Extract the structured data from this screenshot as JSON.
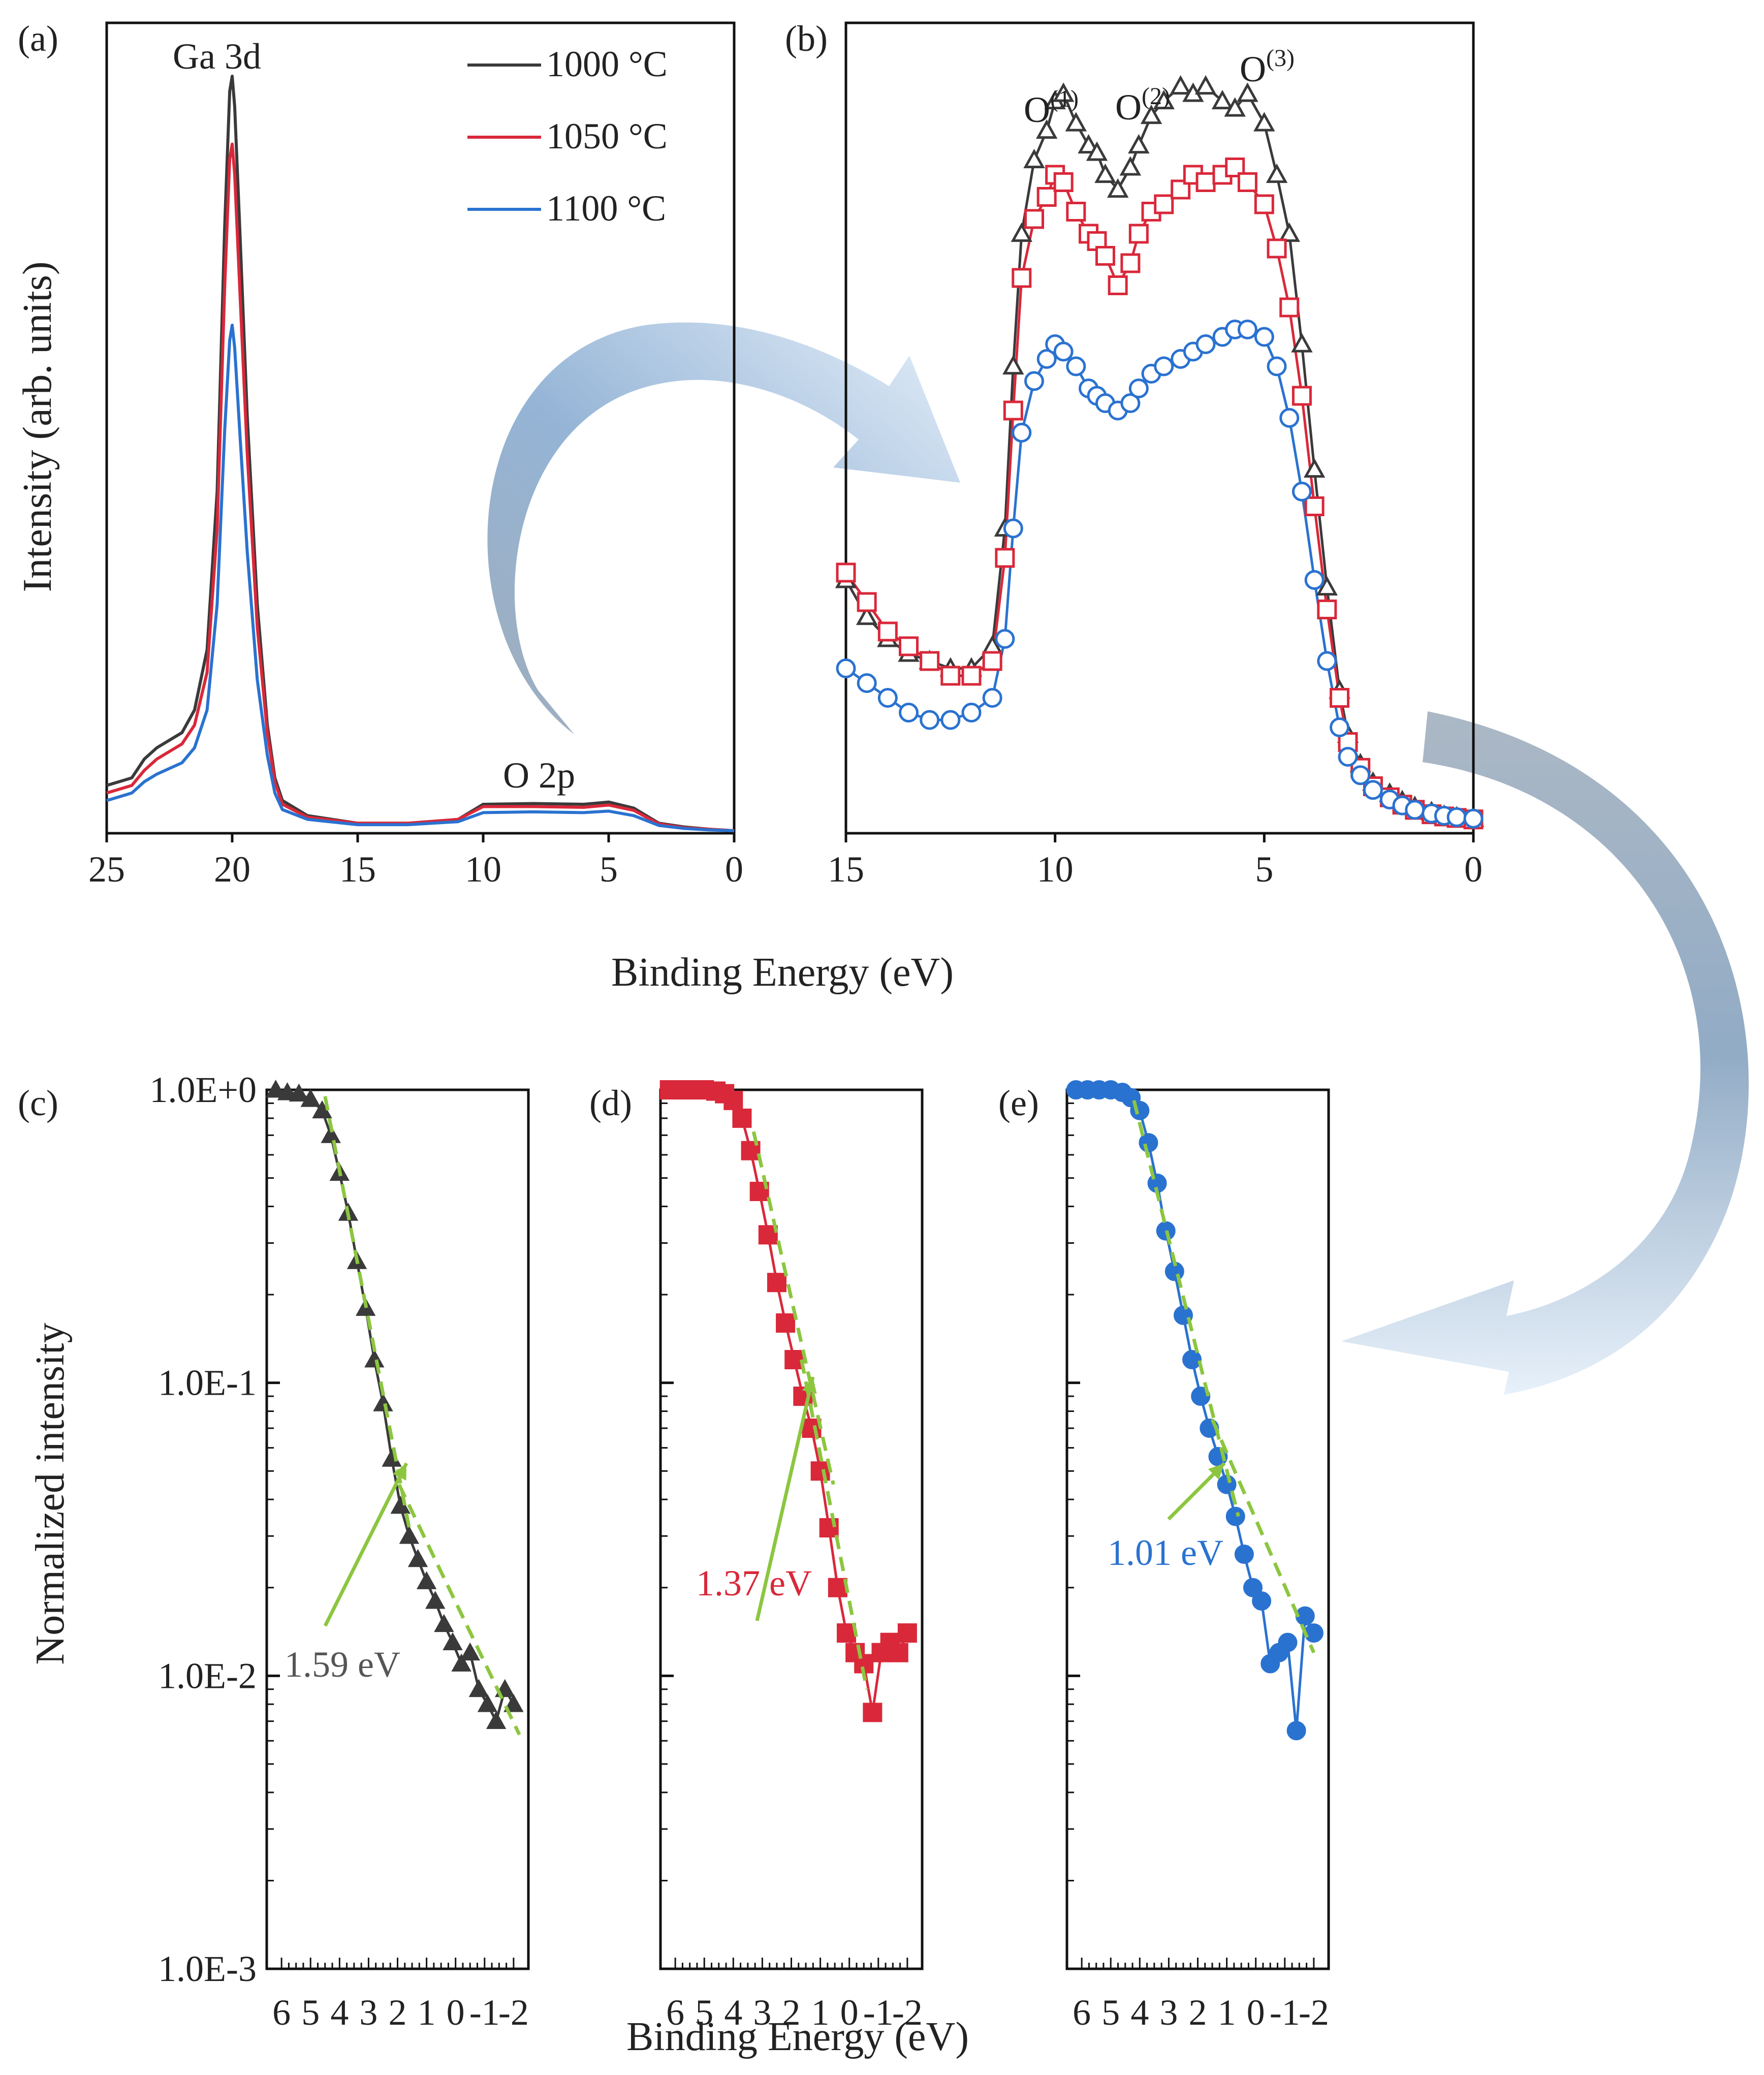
{
  "figure": {
    "shared_xlabel_top": "Binding Energy (eV)",
    "shared_xlabel_bottom": "Binding Energy (eV)"
  },
  "chart_data": [
    {
      "panel": "(a)",
      "type": "line",
      "title": "",
      "xlabel": "",
      "ylabel": "Intensity (arb. units)",
      "xlim": [
        25,
        0
      ],
      "x_ticks": [
        "25",
        "20",
        "15",
        "10",
        "5",
        "0"
      ],
      "annotations": [
        "Ga 3d",
        "O 2p"
      ],
      "legend": {
        "placement": "top-right",
        "entries": [
          "1000 °C",
          "1050 °C",
          "1100 °C"
        ]
      },
      "series": [
        {
          "name": "1000 °C",
          "color": "#3a3a3a",
          "x": [
            25,
            24,
            23.5,
            23,
            22,
            21.5,
            21,
            20.6,
            20.3,
            20.1,
            20,
            19.9,
            19.7,
            19.4,
            19,
            18.6,
            18.3,
            18,
            17,
            15,
            13,
            11,
            10,
            8,
            6,
            5,
            4,
            3,
            2,
            1,
            0
          ],
          "y": [
            0.06,
            0.07,
            0.095,
            0.11,
            0.13,
            0.16,
            0.24,
            0.45,
            0.8,
            0.98,
            1.0,
            0.96,
            0.8,
            0.55,
            0.3,
            0.14,
            0.07,
            0.04,
            0.02,
            0.01,
            0.01,
            0.015,
            0.035,
            0.036,
            0.035,
            0.038,
            0.03,
            0.01,
            0.005,
            0.002,
            0.0
          ]
        },
        {
          "name": "1050 °C",
          "color": "#d9283a",
          "x": [
            25,
            24,
            23.5,
            23,
            22,
            21.5,
            21,
            20.6,
            20.3,
            20.1,
            20,
            19.9,
            19.7,
            19.4,
            19,
            18.6,
            18.3,
            18,
            17,
            15,
            13,
            11,
            10,
            8,
            6,
            5,
            4,
            3,
            2,
            1,
            0
          ],
          "y": [
            0.05,
            0.06,
            0.08,
            0.095,
            0.115,
            0.14,
            0.21,
            0.4,
            0.72,
            0.89,
            0.91,
            0.87,
            0.72,
            0.5,
            0.27,
            0.13,
            0.065,
            0.035,
            0.018,
            0.01,
            0.01,
            0.015,
            0.032,
            0.032,
            0.031,
            0.034,
            0.027,
            0.009,
            0.004,
            0.002,
            0.0
          ]
        },
        {
          "name": "1100 °C",
          "color": "#2a72d0",
          "x": [
            25,
            24,
            23.5,
            23,
            22,
            21.5,
            21,
            20.6,
            20.3,
            20.1,
            20,
            19.9,
            19.7,
            19.4,
            19,
            18.6,
            18.3,
            18,
            17,
            15,
            13,
            11,
            10,
            8,
            6,
            5,
            4,
            3,
            2,
            1,
            0
          ],
          "y": [
            0.04,
            0.05,
            0.065,
            0.075,
            0.09,
            0.11,
            0.16,
            0.3,
            0.53,
            0.65,
            0.67,
            0.64,
            0.53,
            0.37,
            0.2,
            0.1,
            0.05,
            0.028,
            0.015,
            0.008,
            0.008,
            0.012,
            0.024,
            0.025,
            0.024,
            0.026,
            0.02,
            0.007,
            0.003,
            0.001,
            0.0
          ]
        }
      ]
    },
    {
      "panel": "(b)",
      "type": "scatter",
      "title": "",
      "xlabel": "",
      "ylabel": "",
      "xlim": [
        15,
        0
      ],
      "x_ticks": [
        "15",
        "10",
        "5",
        "0"
      ],
      "annotations": [
        "O(1)",
        "O(2)",
        "O(3)"
      ],
      "series": [
        {
          "name": "1000 °C",
          "marker": "triangle-open",
          "color": "#3a3a3a",
          "x": [
            15,
            14.5,
            14,
            13.5,
            13,
            12.5,
            12,
            11.5,
            11.2,
            11,
            10.8,
            10.5,
            10.2,
            10,
            9.8,
            9.5,
            9.2,
            9,
            8.8,
            8.5,
            8.2,
            8,
            7.7,
            7.4,
            7,
            6.7,
            6.4,
            6,
            5.7,
            5.4,
            5,
            4.7,
            4.4,
            4.1,
            3.8,
            3.5,
            3.2,
            3,
            2.7,
            2.4,
            2,
            1.7,
            1.4,
            1,
            0.7,
            0.4,
            0
          ],
          "y": [
            0.33,
            0.28,
            0.25,
            0.23,
            0.22,
            0.21,
            0.21,
            0.24,
            0.4,
            0.62,
            0.8,
            0.9,
            0.94,
            0.98,
            0.99,
            0.95,
            0.92,
            0.91,
            0.88,
            0.86,
            0.89,
            0.92,
            0.96,
            0.98,
            1.0,
            0.99,
            1.0,
            0.98,
            0.97,
            0.99,
            0.95,
            0.88,
            0.8,
            0.65,
            0.48,
            0.32,
            0.18,
            0.12,
            0.08,
            0.055,
            0.04,
            0.03,
            0.022,
            0.015,
            0.01,
            0.008,
            0.006
          ]
        },
        {
          "name": "1050 °C",
          "marker": "square-open",
          "color": "#d9283a",
          "x": [
            15,
            14.5,
            14,
            13.5,
            13,
            12.5,
            12,
            11.5,
            11.2,
            11,
            10.8,
            10.5,
            10.2,
            10,
            9.8,
            9.5,
            9.2,
            9,
            8.8,
            8.5,
            8.2,
            8,
            7.7,
            7.4,
            7,
            6.7,
            6.4,
            6,
            5.7,
            5.4,
            5,
            4.7,
            4.4,
            4.1,
            3.8,
            3.5,
            3.2,
            3,
            2.7,
            2.4,
            2,
            1.7,
            1.4,
            1,
            0.7,
            0.4,
            0
          ],
          "y": [
            0.34,
            0.3,
            0.26,
            0.24,
            0.22,
            0.2,
            0.2,
            0.22,
            0.36,
            0.56,
            0.74,
            0.82,
            0.85,
            0.88,
            0.87,
            0.83,
            0.8,
            0.79,
            0.77,
            0.73,
            0.76,
            0.8,
            0.83,
            0.84,
            0.86,
            0.88,
            0.87,
            0.88,
            0.89,
            0.87,
            0.84,
            0.78,
            0.7,
            0.58,
            0.43,
            0.29,
            0.17,
            0.11,
            0.075,
            0.05,
            0.035,
            0.025,
            0.018,
            0.012,
            0.009,
            0.007,
            0.005
          ]
        },
        {
          "name": "1100 °C",
          "marker": "circle-open",
          "color": "#2a72d0",
          "x": [
            15,
            14.5,
            14,
            13.5,
            13,
            12.5,
            12,
            11.5,
            11.2,
            11,
            10.8,
            10.5,
            10.2,
            10,
            9.8,
            9.5,
            9.2,
            9,
            8.8,
            8.5,
            8.2,
            8,
            7.7,
            7.4,
            7,
            6.7,
            6.4,
            6,
            5.7,
            5.4,
            5,
            4.7,
            4.4,
            4.1,
            3.8,
            3.5,
            3.2,
            3,
            2.7,
            2.4,
            2,
            1.7,
            1.4,
            1,
            0.7,
            0.4,
            0
          ],
          "y": [
            0.21,
            0.19,
            0.17,
            0.15,
            0.14,
            0.14,
            0.15,
            0.17,
            0.25,
            0.4,
            0.53,
            0.6,
            0.63,
            0.65,
            0.64,
            0.62,
            0.59,
            0.58,
            0.57,
            0.56,
            0.57,
            0.59,
            0.61,
            0.62,
            0.63,
            0.64,
            0.65,
            0.66,
            0.67,
            0.67,
            0.66,
            0.62,
            0.55,
            0.45,
            0.33,
            0.22,
            0.13,
            0.09,
            0.065,
            0.045,
            0.032,
            0.024,
            0.018,
            0.013,
            0.01,
            0.008,
            0.006
          ]
        }
      ]
    },
    {
      "panel": "(c)",
      "type": "scatter",
      "title": "",
      "ylabel": "Normalized intensity",
      "yscale": "log",
      "ylim": [
        0.001,
        1.0
      ],
      "y_ticks": [
        "1.0E+0",
        "1.0E-1",
        "1.0E-2",
        "1.0E-3"
      ],
      "xlim": [
        6.3,
        -2.3
      ],
      "x_ticks": [
        "6",
        "5",
        "4",
        "3",
        "2",
        "1",
        "0",
        "-1",
        "-2"
      ],
      "annotation": "1.59 eV",
      "annotation_color": "#555555",
      "series": [
        {
          "name": "1000 °C",
          "marker": "triangle-filled",
          "color": "#3a3a3a",
          "x": [
            6.2,
            5.8,
            5.4,
            5.0,
            4.6,
            4.3,
            4.0,
            3.7,
            3.4,
            3.1,
            2.8,
            2.5,
            2.2,
            1.9,
            1.6,
            1.3,
            1.0,
            0.7,
            0.4,
            0.1,
            -0.2,
            -0.5,
            -0.8,
            -1.1,
            -1.4,
            -1.7,
            -2.0
          ],
          "y": [
            1.0,
            0.98,
            0.97,
            0.93,
            0.85,
            0.7,
            0.52,
            0.38,
            0.26,
            0.18,
            0.12,
            0.085,
            0.055,
            0.038,
            0.03,
            0.025,
            0.021,
            0.018,
            0.015,
            0.013,
            0.011,
            0.012,
            0.009,
            0.008,
            0.007,
            0.009,
            0.008
          ]
        }
      ],
      "fits": [
        {
          "x": [
            4.5,
            1.6
          ],
          "y": [
            0.95,
            0.032
          ]
        },
        {
          "x": [
            1.95,
            -2.2
          ],
          "y": [
            0.045,
            0.0063
          ]
        }
      ]
    },
    {
      "panel": "(d)",
      "type": "scatter",
      "title": "",
      "yscale": "log",
      "ylim": [
        0.001,
        1.0
      ],
      "xlim": [
        6.3,
        -2.3
      ],
      "x_ticks": [
        "6",
        "5",
        "4",
        "3",
        "2",
        "1",
        "0",
        "-1",
        "-2"
      ],
      "annotation": "1.37 eV",
      "annotation_color": "#d9283a",
      "series": [
        {
          "name": "1050 °C",
          "marker": "square-filled",
          "color": "#d9283a",
          "x": [
            6.2,
            5.8,
            5.4,
            5.0,
            4.6,
            4.3,
            4.0,
            3.7,
            3.4,
            3.1,
            2.8,
            2.5,
            2.2,
            1.9,
            1.6,
            1.3,
            1.0,
            0.7,
            0.4,
            0.1,
            -0.2,
            -0.5,
            -0.8,
            -1.1,
            -1.4,
            -1.7,
            -2.0
          ],
          "y": [
            1.0,
            1.0,
            1.0,
            1.0,
            0.99,
            0.97,
            0.92,
            0.8,
            0.62,
            0.45,
            0.32,
            0.22,
            0.16,
            0.12,
            0.09,
            0.07,
            0.05,
            0.032,
            0.02,
            0.014,
            0.012,
            0.011,
            0.0075,
            0.012,
            0.013,
            0.012,
            0.014
          ]
        }
      ],
      "fits": [
        {
          "x": [
            3.3,
            0.55
          ],
          "y": [
            0.72,
            0.045
          ]
        },
        {
          "x": [
            1.65,
            -0.6
          ],
          "y": [
            0.12,
            0.009
          ]
        }
      ]
    },
    {
      "panel": "(e)",
      "type": "scatter",
      "title": "",
      "yscale": "log",
      "ylim": [
        0.001,
        1.0
      ],
      "xlim": [
        6.3,
        -2.3
      ],
      "x_ticks": [
        "6",
        "5",
        "4",
        "3",
        "2",
        "1",
        "0",
        "-1",
        "-2"
      ],
      "annotation": "1.01 eV",
      "annotation_color": "#2a72d0",
      "series": [
        {
          "name": "1100 °C",
          "marker": "circle-filled",
          "color": "#2a72d0",
          "x": [
            6.2,
            5.8,
            5.4,
            5.0,
            4.6,
            4.3,
            4.0,
            3.7,
            3.4,
            3.1,
            2.8,
            2.5,
            2.2,
            1.9,
            1.6,
            1.3,
            1.0,
            0.7,
            0.4,
            0.1,
            -0.2,
            -0.5,
            -0.8,
            -1.1,
            -1.4,
            -1.7,
            -2.0
          ],
          "y": [
            1.0,
            1.0,
            1.0,
            1.0,
            0.98,
            0.94,
            0.85,
            0.66,
            0.48,
            0.33,
            0.24,
            0.17,
            0.12,
            0.09,
            0.07,
            0.056,
            0.045,
            0.035,
            0.026,
            0.02,
            0.018,
            0.011,
            0.012,
            0.013,
            0.0065,
            0.016,
            0.014
          ]
        }
      ],
      "fits": [
        {
          "x": [
            4.2,
            0.6
          ],
          "y": [
            0.92,
            0.035
          ]
        },
        {
          "x": [
            1.5,
            -2.0
          ],
          "y": [
            0.075,
            0.012
          ]
        }
      ]
    }
  ]
}
